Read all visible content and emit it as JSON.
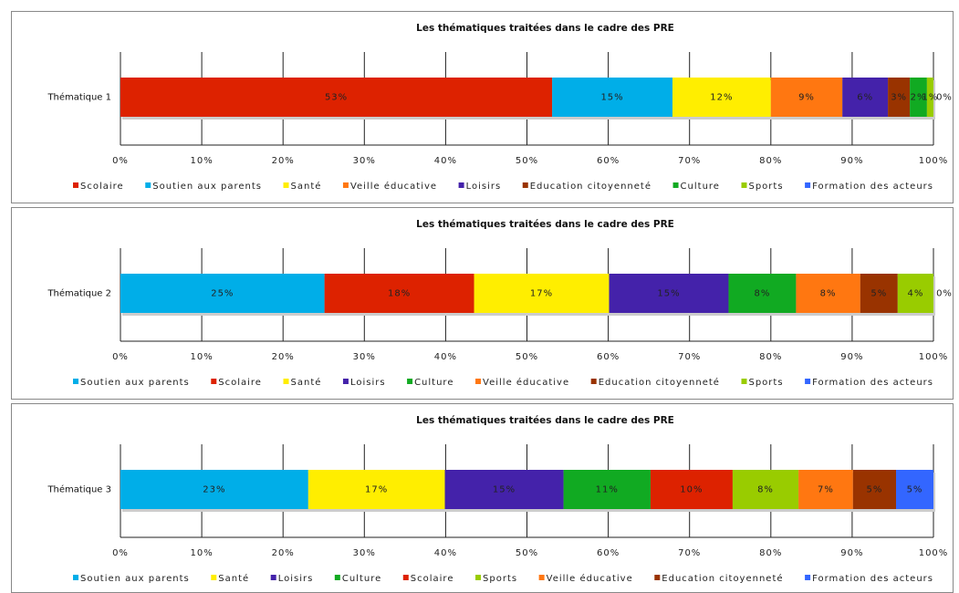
{
  "chart_data": [
    {
      "type": "bar",
      "orientation": "horizontal",
      "stacked": true,
      "title": "Les thématiques traitées dans le cadre des PRE",
      "categories": [
        "Thématique 1"
      ],
      "xlim": [
        0,
        100
      ],
      "xticks": [
        {
          "value": 0,
          "label": "0%"
        },
        {
          "value": 10,
          "label": "10%"
        },
        {
          "value": 20,
          "label": "20%"
        },
        {
          "value": 30,
          "label": "30%"
        },
        {
          "value": 40,
          "label": "40%"
        },
        {
          "value": 50,
          "label": "50%"
        },
        {
          "value": 60,
          "label": "60%"
        },
        {
          "value": 70,
          "label": "70%"
        },
        {
          "value": 80,
          "label": "80%"
        },
        {
          "value": 90,
          "label": "90%"
        },
        {
          "value": 100,
          "label": "100%"
        }
      ],
      "grid": true,
      "legend": "bottom",
      "series": [
        {
          "name": "Scolaire",
          "color": "#dd2200",
          "values": [
            53.1
          ],
          "value_labels": [
            "53%"
          ]
        },
        {
          "name": "Soutien aux parents",
          "color": "#00aee8",
          "values": [
            14.8
          ],
          "value_labels": [
            "15%"
          ]
        },
        {
          "name": "Santé",
          "color": "#ffee00",
          "values": [
            12.1
          ],
          "value_labels": [
            "12%"
          ]
        },
        {
          "name": "Veille éducative",
          "color": "#ff7711",
          "values": [
            8.8
          ],
          "value_labels": [
            "9%"
          ]
        },
        {
          "name": "Loisirs",
          "color": "#4422aa",
          "values": [
            5.6
          ],
          "value_labels": [
            "6%"
          ]
        },
        {
          "name": "Education citoyenneté",
          "color": "#993300",
          "values": [
            2.7
          ],
          "value_labels": [
            "3%"
          ]
        },
        {
          "name": "Culture",
          "color": "#11aa22",
          "values": [
            2.1
          ],
          "value_labels": [
            "2%"
          ]
        },
        {
          "name": "Sports",
          "color": "#99cc00",
          "values": [
            0.8
          ],
          "value_labels": [
            "1%"
          ]
        },
        {
          "name": "Formation des acteurs",
          "color": "#3366ff",
          "values": [
            0
          ],
          "value_labels": [
            "0%"
          ]
        }
      ]
    },
    {
      "type": "bar",
      "orientation": "horizontal",
      "stacked": true,
      "title": "Les thématiques traitées dans le cadre des PRE",
      "categories": [
        "Thématique 2"
      ],
      "xlim": [
        0,
        100
      ],
      "xticks": [
        {
          "value": 0,
          "label": "0%"
        },
        {
          "value": 10,
          "label": "10%"
        },
        {
          "value": 20,
          "label": "20%"
        },
        {
          "value": 30,
          "label": "30%"
        },
        {
          "value": 40,
          "label": "40%"
        },
        {
          "value": 50,
          "label": "50%"
        },
        {
          "value": 60,
          "label": "60%"
        },
        {
          "value": 70,
          "label": "70%"
        },
        {
          "value": 80,
          "label": "80%"
        },
        {
          "value": 90,
          "label": "90%"
        },
        {
          "value": 100,
          "label": "100%"
        }
      ],
      "grid": true,
      "legend": "bottom",
      "series": [
        {
          "name": "Soutien aux parents",
          "color": "#00aee8",
          "values": [
            25.1
          ],
          "value_labels": [
            "25%"
          ]
        },
        {
          "name": "Scolaire",
          "color": "#dd2200",
          "values": [
            18.4
          ],
          "value_labels": [
            "18%"
          ]
        },
        {
          "name": "Santé",
          "color": "#ffee00",
          "values": [
            16.6
          ],
          "value_labels": [
            "17%"
          ]
        },
        {
          "name": "Loisirs",
          "color": "#4422aa",
          "values": [
            14.7
          ],
          "value_labels": [
            "15%"
          ]
        },
        {
          "name": "Culture",
          "color": "#11aa22",
          "values": [
            8.3
          ],
          "value_labels": [
            "8%"
          ]
        },
        {
          "name": "Veille éducative",
          "color": "#ff7711",
          "values": [
            7.9
          ],
          "value_labels": [
            "8%"
          ]
        },
        {
          "name": "Education citoyenneté",
          "color": "#993300",
          "values": [
            4.6
          ],
          "value_labels": [
            "5%"
          ]
        },
        {
          "name": "Sports",
          "color": "#99cc00",
          "values": [
            4.4
          ],
          "value_labels": [
            "4%"
          ]
        },
        {
          "name": "Formation des acteurs",
          "color": "#3366ff",
          "values": [
            0
          ],
          "value_labels": [
            "0%"
          ]
        }
      ]
    },
    {
      "type": "bar",
      "orientation": "horizontal",
      "stacked": true,
      "title": "Les thématiques traitées dans le cadre des PRE",
      "categories": [
        "Thématique 3"
      ],
      "xlim": [
        0,
        100
      ],
      "xticks": [
        {
          "value": 0,
          "label": "0%"
        },
        {
          "value": 10,
          "label": "10%"
        },
        {
          "value": 20,
          "label": "20%"
        },
        {
          "value": 30,
          "label": "30%"
        },
        {
          "value": 40,
          "label": "40%"
        },
        {
          "value": 50,
          "label": "50%"
        },
        {
          "value": 60,
          "label": "60%"
        },
        {
          "value": 70,
          "label": "70%"
        },
        {
          "value": 80,
          "label": "80%"
        },
        {
          "value": 90,
          "label": "90%"
        },
        {
          "value": 100,
          "label": "100%"
        }
      ],
      "grid": true,
      "legend": "bottom",
      "series": [
        {
          "name": "Soutien aux parents",
          "color": "#00aee8",
          "values": [
            23.1
          ],
          "value_labels": [
            "23%"
          ]
        },
        {
          "name": "Santé",
          "color": "#ffee00",
          "values": [
            16.8
          ],
          "value_labels": [
            "17%"
          ]
        },
        {
          "name": "Loisirs",
          "color": "#4422aa",
          "values": [
            14.6
          ],
          "value_labels": [
            "15%"
          ]
        },
        {
          "name": "Culture",
          "color": "#11aa22",
          "values": [
            10.7
          ],
          "value_labels": [
            "11%"
          ]
        },
        {
          "name": "Scolaire",
          "color": "#dd2200",
          "values": [
            10.1
          ],
          "value_labels": [
            "10%"
          ]
        },
        {
          "name": "Sports",
          "color": "#99cc00",
          "values": [
            8.1
          ],
          "value_labels": [
            "8%"
          ]
        },
        {
          "name": "Veille éducative",
          "color": "#ff7711",
          "values": [
            6.7
          ],
          "value_labels": [
            "7%"
          ]
        },
        {
          "name": "Education citoyenneté",
          "color": "#993300",
          "values": [
            5.3
          ],
          "value_labels": [
            "5%"
          ]
        },
        {
          "name": "Formation des acteurs",
          "color": "#3366ff",
          "values": [
            4.6
          ],
          "value_labels": [
            "5%"
          ]
        }
      ]
    }
  ]
}
